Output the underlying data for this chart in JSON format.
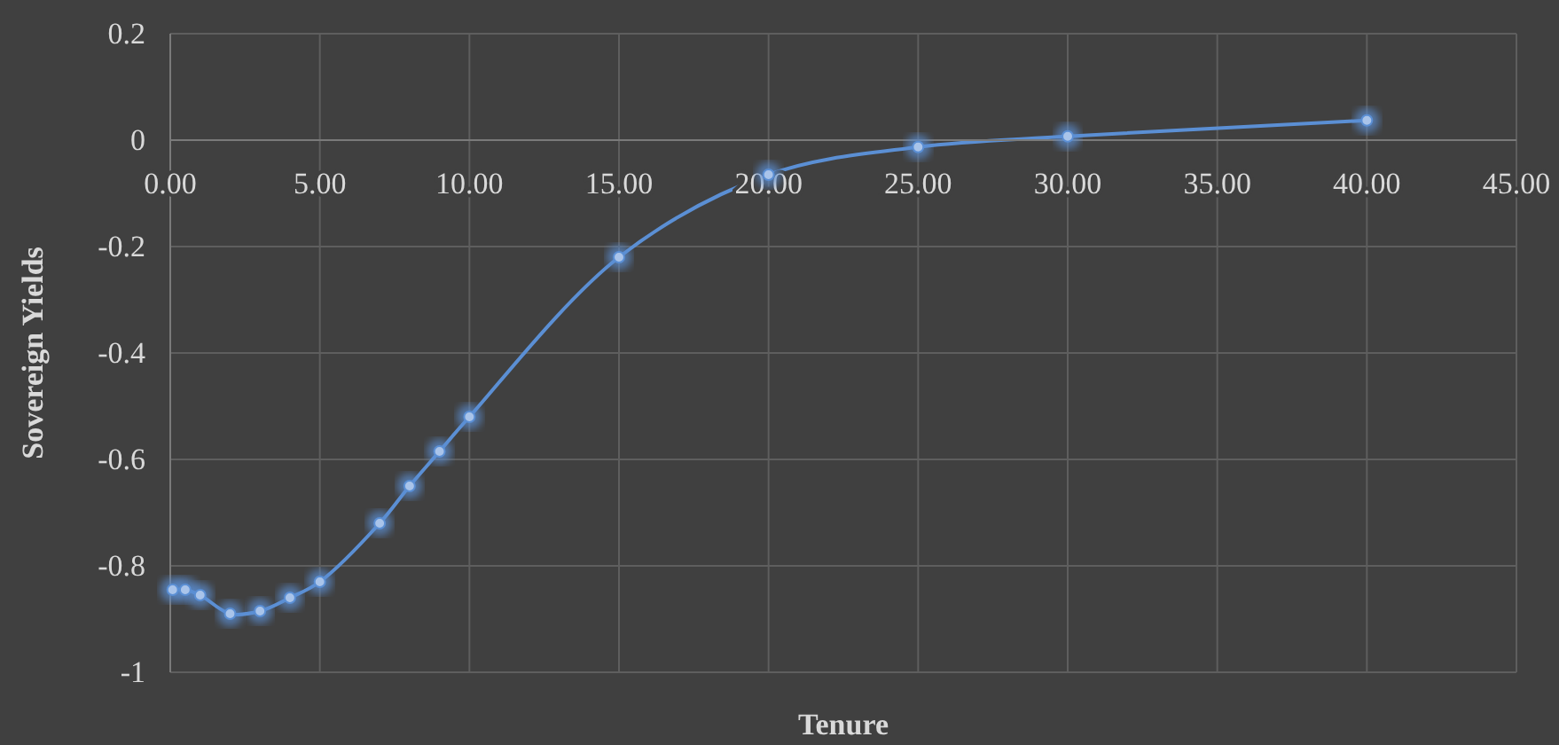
{
  "chart_data": {
    "type": "line",
    "xlabel": "Tenure",
    "ylabel": "Sovereign Yields",
    "x": [
      0.08,
      0.5,
      1,
      2,
      3,
      4,
      5,
      7,
      8,
      9,
      10,
      15,
      20,
      25,
      30,
      40
    ],
    "series": [
      {
        "color": "#5b8fd4",
        "values": [
          -0.845,
          -0.845,
          -0.855,
          -0.89,
          -0.885,
          -0.86,
          -0.83,
          -0.72,
          -0.65,
          -0.585,
          -0.52,
          -0.22,
          -0.065,
          -0.013,
          0.007,
          0.037
        ]
      }
    ],
    "xlim": [
      0,
      45
    ],
    "xticks": [
      {
        "value": 0,
        "label": "0.00"
      },
      {
        "value": 5,
        "label": "5.00"
      },
      {
        "value": 10,
        "label": "10.00"
      },
      {
        "value": 15,
        "label": "15.00"
      },
      {
        "value": 20,
        "label": "20.00"
      },
      {
        "value": 25,
        "label": "25.00"
      },
      {
        "value": 30,
        "label": "30.00"
      },
      {
        "value": 35,
        "label": "35.00"
      },
      {
        "value": 40,
        "label": "40.00"
      },
      {
        "value": 45,
        "label": "45.00"
      }
    ],
    "ylim": [
      -1,
      0.2
    ],
    "yticks": [
      -1,
      -0.8,
      -0.6,
      -0.4,
      -0.2,
      0,
      0.2
    ],
    "grid": true,
    "marker": "circle",
    "line_style": "solid"
  }
}
